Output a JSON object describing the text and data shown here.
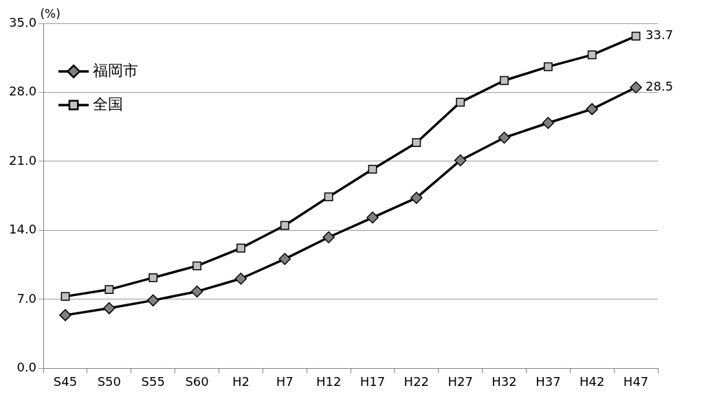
{
  "chart_data": {
    "type": "line",
    "ylabel": "(%)",
    "categories": [
      "S45",
      "S50",
      "S55",
      "S60",
      "H2",
      "H7",
      "H12",
      "H17",
      "H22",
      "H27",
      "H32",
      "H37",
      "H42",
      "H47"
    ],
    "series": [
      {
        "name": "福岡市",
        "color": "#808080",
        "marker": "diamond",
        "values": [
          5.4,
          6.1,
          6.9,
          7.8,
          9.1,
          11.1,
          13.3,
          15.3,
          17.3,
          21.1,
          23.4,
          24.9,
          26.3,
          28.5
        ],
        "value_labels": [
          null,
          null,
          null,
          null,
          null,
          null,
          null,
          null,
          null,
          null,
          null,
          null,
          null,
          "28.5"
        ]
      },
      {
        "name": "全国",
        "color": "#c0c0c0",
        "marker": "square",
        "values": [
          7.3,
          8.0,
          9.2,
          10.4,
          12.2,
          14.5,
          17.4,
          20.2,
          22.9,
          27.0,
          29.2,
          30.6,
          31.8,
          33.7
        ],
        "value_labels": [
          null,
          null,
          null,
          null,
          null,
          null,
          null,
          null,
          null,
          null,
          null,
          null,
          null,
          "33.7"
        ]
      }
    ],
    "ylim": [
      0,
      35
    ],
    "yticks": [
      {
        "value": 0,
        "label": "0.0"
      },
      {
        "value": 7,
        "label": "7.0"
      },
      {
        "value": 14,
        "label": "14.0"
      },
      {
        "value": 21,
        "label": "21.0"
      },
      {
        "value": 28,
        "label": "28.0"
      },
      {
        "value": 35,
        "label": "35.0"
      }
    ],
    "grid": "y",
    "legend": "top left"
  }
}
